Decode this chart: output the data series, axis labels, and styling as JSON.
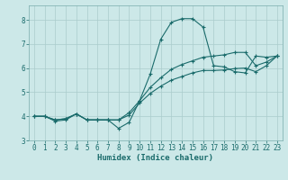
{
  "xlabel": "Humidex (Indice chaleur)",
  "background_color": "#cce8e8",
  "grid_color": "#aacccc",
  "line_color": "#1a6b6b",
  "xlim": [
    -0.5,
    23.5
  ],
  "ylim": [
    3.0,
    8.6
  ],
  "yticks": [
    3,
    4,
    5,
    6,
    7,
    8
  ],
  "xticks": [
    0,
    1,
    2,
    3,
    4,
    5,
    6,
    7,
    8,
    9,
    10,
    11,
    12,
    13,
    14,
    15,
    16,
    17,
    18,
    19,
    20,
    21,
    22,
    23
  ],
  "line1": [
    4.0,
    4.0,
    3.8,
    3.85,
    4.1,
    3.85,
    3.85,
    3.85,
    3.5,
    3.75,
    4.65,
    5.75,
    7.2,
    7.9,
    8.05,
    8.05,
    7.7,
    6.1,
    6.05,
    5.85,
    5.8,
    6.5,
    6.45,
    6.5
  ],
  "line2": [
    4.0,
    4.0,
    3.85,
    3.9,
    4.1,
    3.85,
    3.85,
    3.85,
    3.85,
    4.15,
    4.65,
    5.2,
    5.6,
    5.95,
    6.15,
    6.3,
    6.45,
    6.5,
    6.55,
    6.65,
    6.65,
    6.1,
    6.25,
    6.5
  ],
  "line3": [
    4.0,
    4.0,
    3.85,
    3.9,
    4.1,
    3.85,
    3.85,
    3.85,
    3.85,
    4.05,
    4.55,
    4.95,
    5.25,
    5.5,
    5.65,
    5.8,
    5.9,
    5.9,
    5.92,
    5.98,
    6.0,
    5.85,
    6.1,
    6.5
  ]
}
